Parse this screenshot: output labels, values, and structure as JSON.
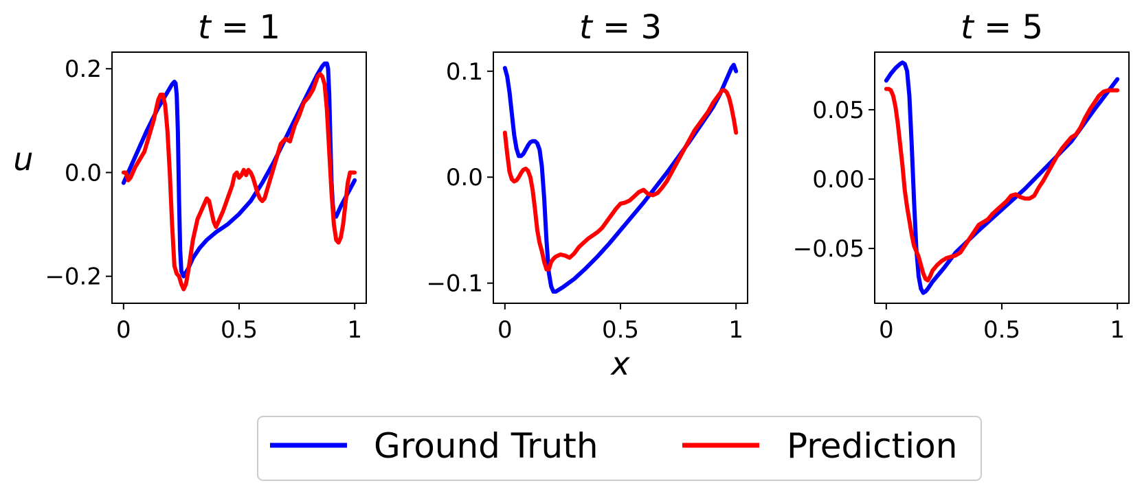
{
  "figure": {
    "xlabel": "x",
    "ylabel": "u",
    "legend_placement": "bottom-center"
  },
  "legend": [
    {
      "label": "Ground Truth",
      "color": "#0000ff"
    },
    {
      "label": "Prediction",
      "color": "#ff0000"
    }
  ],
  "chart_data": [
    {
      "type": "line",
      "title_var": "t",
      "title_eq": " = ",
      "title_val": "1",
      "xlim": [
        -0.05,
        1.05
      ],
      "ylim": [
        -0.252,
        0.232
      ],
      "xticks": [
        0,
        0.5,
        1
      ],
      "xtick_labels": [
        "0",
        "0.5",
        "1"
      ],
      "yticks": [
        0.2,
        0.0,
        -0.2
      ],
      "ytick_labels": [
        "0.2",
        "0.0",
        "−0.2"
      ],
      "grid": false,
      "series": [
        {
          "name": "Ground Truth",
          "color": "#0000ff",
          "x": [
            0.0,
            0.05,
            0.1,
            0.15,
            0.19,
            0.21,
            0.22,
            0.225,
            0.23,
            0.235,
            0.24,
            0.245,
            0.25,
            0.26,
            0.28,
            0.3,
            0.33,
            0.36,
            0.4,
            0.45,
            0.5,
            0.55,
            0.6,
            0.65,
            0.7,
            0.75,
            0.8,
            0.84,
            0.86,
            0.87,
            0.88,
            0.885,
            0.89,
            0.895,
            0.9,
            0.905,
            0.91,
            0.92,
            0.94,
            0.97,
            1.0
          ],
          "y": [
            -0.02,
            0.03,
            0.08,
            0.125,
            0.155,
            0.17,
            0.175,
            0.172,
            0.15,
            0.08,
            -0.05,
            -0.15,
            -0.19,
            -0.2,
            -0.185,
            -0.165,
            -0.145,
            -0.13,
            -0.115,
            -0.1,
            -0.08,
            -0.055,
            -0.02,
            0.02,
            0.065,
            0.11,
            0.155,
            0.19,
            0.205,
            0.21,
            0.21,
            0.2,
            0.15,
            0.06,
            -0.02,
            -0.06,
            -0.08,
            -0.085,
            -0.065,
            -0.04,
            -0.015
          ]
        },
        {
          "name": "Prediction",
          "color": "#ff0000",
          "x": [
            0.0,
            0.01,
            0.02,
            0.03,
            0.05,
            0.07,
            0.09,
            0.11,
            0.13,
            0.15,
            0.16,
            0.17,
            0.18,
            0.19,
            0.2,
            0.21,
            0.22,
            0.23,
            0.24,
            0.25,
            0.26,
            0.27,
            0.28,
            0.29,
            0.3,
            0.32,
            0.34,
            0.36,
            0.37,
            0.38,
            0.39,
            0.4,
            0.41,
            0.43,
            0.45,
            0.47,
            0.48,
            0.49,
            0.5,
            0.51,
            0.52,
            0.53,
            0.54,
            0.55,
            0.56,
            0.57,
            0.58,
            0.59,
            0.6,
            0.61,
            0.62,
            0.63,
            0.64,
            0.66,
            0.68,
            0.7,
            0.72,
            0.74,
            0.76,
            0.78,
            0.8,
            0.82,
            0.84,
            0.85,
            0.86,
            0.87,
            0.88,
            0.89,
            0.9,
            0.91,
            0.92,
            0.93,
            0.94,
            0.95,
            0.96,
            0.97,
            0.98,
            0.99,
            1.0
          ],
          "y": [
            0.0,
            0.0,
            -0.015,
            -0.01,
            0.01,
            0.025,
            0.04,
            0.07,
            0.1,
            0.14,
            0.15,
            0.15,
            0.13,
            0.08,
            0.0,
            -0.1,
            -0.18,
            -0.195,
            -0.2,
            -0.215,
            -0.225,
            -0.215,
            -0.19,
            -0.16,
            -0.13,
            -0.09,
            -0.07,
            -0.05,
            -0.055,
            -0.075,
            -0.095,
            -0.105,
            -0.095,
            -0.075,
            -0.05,
            -0.025,
            -0.005,
            -0.0,
            -0.01,
            -0.005,
            0.005,
            -0.005,
            0.005,
            0.0,
            -0.01,
            -0.025,
            -0.04,
            -0.05,
            -0.055,
            -0.05,
            -0.035,
            -0.02,
            -0.005,
            0.025,
            0.055,
            0.065,
            0.06,
            0.09,
            0.11,
            0.135,
            0.145,
            0.16,
            0.185,
            0.19,
            0.185,
            0.17,
            0.12,
            0.04,
            -0.04,
            -0.1,
            -0.13,
            -0.135,
            -0.125,
            -0.1,
            -0.06,
            -0.02,
            0.0,
            0.0,
            -0.0
          ]
        }
      ]
    },
    {
      "type": "line",
      "title_var": "t",
      "title_eq": " = ",
      "title_val": "3",
      "xlim": [
        -0.05,
        1.05
      ],
      "ylim": [
        -0.119,
        0.118
      ],
      "xticks": [
        0,
        0.5,
        1
      ],
      "xtick_labels": [
        "0",
        "0.5",
        "1"
      ],
      "yticks": [
        0.1,
        0.0,
        -0.1
      ],
      "ytick_labels": [
        "0.1",
        "0.0",
        "−0.1"
      ],
      "grid": false,
      "series": [
        {
          "name": "Ground Truth",
          "color": "#0000ff",
          "x": [
            0.0,
            0.01,
            0.02,
            0.03,
            0.04,
            0.05,
            0.06,
            0.07,
            0.08,
            0.09,
            0.1,
            0.11,
            0.12,
            0.13,
            0.14,
            0.15,
            0.16,
            0.17,
            0.18,
            0.19,
            0.2,
            0.21,
            0.22,
            0.25,
            0.3,
            0.35,
            0.4,
            0.45,
            0.5,
            0.55,
            0.6,
            0.65,
            0.7,
            0.75,
            0.8,
            0.85,
            0.9,
            0.93,
            0.95,
            0.97,
            0.98,
            0.99,
            1.0
          ],
          "y": [
            0.103,
            0.095,
            0.08,
            0.06,
            0.04,
            0.027,
            0.02,
            0.02,
            0.022,
            0.026,
            0.03,
            0.033,
            0.034,
            0.034,
            0.032,
            0.026,
            0.01,
            -0.02,
            -0.06,
            -0.09,
            -0.103,
            -0.108,
            -0.108,
            -0.104,
            -0.096,
            -0.086,
            -0.075,
            -0.063,
            -0.05,
            -0.037,
            -0.024,
            -0.01,
            0.004,
            0.019,
            0.034,
            0.05,
            0.066,
            0.078,
            0.088,
            0.098,
            0.103,
            0.106,
            0.1
          ]
        },
        {
          "name": "Prediction",
          "color": "#ff0000",
          "x": [
            0.0,
            0.01,
            0.02,
            0.03,
            0.04,
            0.05,
            0.06,
            0.07,
            0.08,
            0.09,
            0.1,
            0.11,
            0.12,
            0.13,
            0.14,
            0.15,
            0.16,
            0.17,
            0.18,
            0.19,
            0.2,
            0.21,
            0.22,
            0.24,
            0.26,
            0.28,
            0.3,
            0.32,
            0.34,
            0.36,
            0.38,
            0.4,
            0.42,
            0.44,
            0.46,
            0.48,
            0.5,
            0.52,
            0.54,
            0.56,
            0.58,
            0.6,
            0.62,
            0.64,
            0.66,
            0.68,
            0.7,
            0.72,
            0.74,
            0.76,
            0.78,
            0.8,
            0.82,
            0.84,
            0.86,
            0.88,
            0.9,
            0.92,
            0.93,
            0.94,
            0.95,
            0.96,
            0.97,
            0.98,
            0.99,
            1.0
          ],
          "y": [
            0.042,
            0.022,
            0.005,
            -0.002,
            -0.004,
            -0.003,
            0.0,
            0.004,
            0.007,
            0.008,
            0.006,
            0.0,
            -0.012,
            -0.03,
            -0.05,
            -0.062,
            -0.07,
            -0.08,
            -0.087,
            -0.087,
            -0.08,
            -0.077,
            -0.075,
            -0.073,
            -0.074,
            -0.076,
            -0.072,
            -0.066,
            -0.062,
            -0.058,
            -0.055,
            -0.052,
            -0.048,
            -0.042,
            -0.036,
            -0.03,
            -0.025,
            -0.024,
            -0.022,
            -0.018,
            -0.014,
            -0.012,
            -0.016,
            -0.017,
            -0.015,
            -0.01,
            -0.004,
            0.004,
            0.012,
            0.02,
            0.028,
            0.036,
            0.044,
            0.05,
            0.056,
            0.062,
            0.07,
            0.076,
            0.079,
            0.082,
            0.082,
            0.08,
            0.075,
            0.066,
            0.055,
            0.042
          ]
        }
      ]
    },
    {
      "type": "line",
      "title_var": "t",
      "title_eq": " = ",
      "title_val": "5",
      "xlim": [
        -0.05,
        1.05
      ],
      "ylim": [
        -0.0895,
        0.0915
      ],
      "xticks": [
        0,
        0.5,
        1
      ],
      "xtick_labels": [
        "0",
        "0.5",
        "1"
      ],
      "yticks": [
        0.05,
        0.0,
        -0.05
      ],
      "ytick_labels": [
        "0.05",
        "0.00",
        "−0.05"
      ],
      "grid": false,
      "series": [
        {
          "name": "Ground Truth",
          "color": "#0000ff",
          "x": [
            0.0,
            0.02,
            0.04,
            0.06,
            0.07,
            0.08,
            0.09,
            0.1,
            0.11,
            0.12,
            0.13,
            0.14,
            0.15,
            0.16,
            0.17,
            0.18,
            0.2,
            0.25,
            0.3,
            0.4,
            0.5,
            0.6,
            0.7,
            0.8,
            0.9,
            1.0
          ],
          "y": [
            0.071,
            0.076,
            0.08,
            0.083,
            0.084,
            0.083,
            0.078,
            0.06,
            0.025,
            -0.015,
            -0.05,
            -0.07,
            -0.079,
            -0.082,
            -0.081,
            -0.079,
            -0.074,
            -0.064,
            -0.053,
            -0.037,
            -0.022,
            -0.007,
            0.01,
            0.027,
            0.05,
            0.072
          ]
        },
        {
          "name": "Prediction",
          "color": "#ff0000",
          "x": [
            0.0,
            0.01,
            0.02,
            0.03,
            0.04,
            0.05,
            0.06,
            0.07,
            0.08,
            0.09,
            0.1,
            0.11,
            0.12,
            0.13,
            0.14,
            0.15,
            0.16,
            0.17,
            0.18,
            0.19,
            0.2,
            0.22,
            0.24,
            0.26,
            0.28,
            0.3,
            0.32,
            0.34,
            0.36,
            0.38,
            0.4,
            0.42,
            0.44,
            0.46,
            0.48,
            0.5,
            0.52,
            0.54,
            0.56,
            0.58,
            0.6,
            0.62,
            0.64,
            0.66,
            0.68,
            0.7,
            0.72,
            0.74,
            0.76,
            0.78,
            0.8,
            0.82,
            0.84,
            0.86,
            0.88,
            0.9,
            0.92,
            0.94,
            0.96,
            0.98,
            1.0
          ],
          "y": [
            0.065,
            0.065,
            0.064,
            0.06,
            0.052,
            0.04,
            0.025,
            0.01,
            -0.008,
            -0.02,
            -0.03,
            -0.04,
            -0.048,
            -0.052,
            -0.056,
            -0.062,
            -0.068,
            -0.072,
            -0.073,
            -0.07,
            -0.066,
            -0.062,
            -0.059,
            -0.057,
            -0.056,
            -0.055,
            -0.053,
            -0.048,
            -0.043,
            -0.038,
            -0.033,
            -0.031,
            -0.029,
            -0.025,
            -0.022,
            -0.019,
            -0.016,
            -0.012,
            -0.011,
            -0.013,
            -0.014,
            -0.014,
            -0.012,
            -0.006,
            -0.001,
            0.005,
            0.011,
            0.017,
            0.022,
            0.026,
            0.03,
            0.032,
            0.037,
            0.044,
            0.05,
            0.055,
            0.06,
            0.063,
            0.064,
            0.064,
            0.064
          ]
        }
      ]
    }
  ]
}
